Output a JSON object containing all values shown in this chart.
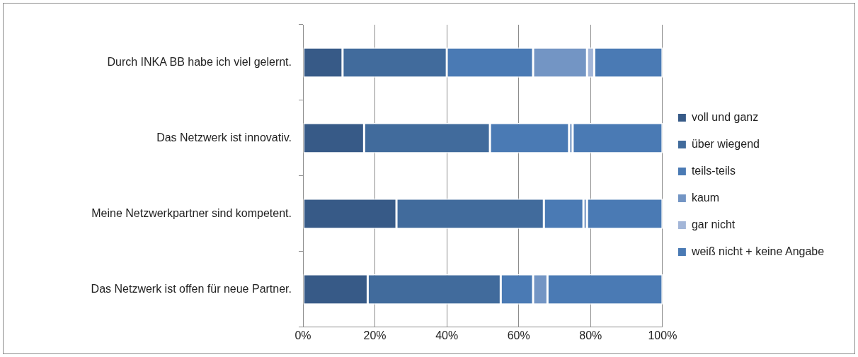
{
  "chart_data": {
    "type": "bar",
    "orientation": "horizontal",
    "stacked": true,
    "categories": [
      "Durch INKA BB habe ich viel gelernt.",
      "Das Netzwerk ist innovativ.",
      "Meine Netzwerkpartner sind kompetent.",
      "Das Netzwerk ist offen für neue Partner."
    ],
    "series": [
      {
        "name": "voll und ganz",
        "color": "#375a87",
        "values": [
          11,
          17,
          26,
          18
        ]
      },
      {
        "name": "über wiegend",
        "color": "#416b9c",
        "values": [
          29,
          35,
          41,
          37
        ]
      },
      {
        "name": "teils-teils",
        "color": "#4a7ab4",
        "values": [
          24,
          22,
          11,
          9
        ]
      },
      {
        "name": "kaum",
        "color": "#7395c4",
        "values": [
          15,
          1,
          1,
          4
        ]
      },
      {
        "name": "gar nicht",
        "color": "#a3b6d8",
        "values": [
          2,
          0,
          0,
          0
        ]
      },
      {
        "name": "weiß nicht + keine Angabe",
        "color": "#4a7ab4",
        "values": [
          19,
          25,
          21,
          32
        ]
      }
    ],
    "xlim": [
      0,
      100
    ],
    "xticks": [
      {
        "value": 0,
        "label": "0%"
      },
      {
        "value": 20,
        "label": "20%"
      },
      {
        "value": 40,
        "label": "40%"
      },
      {
        "value": 60,
        "label": "60%"
      },
      {
        "value": 80,
        "label": "80%"
      },
      {
        "value": 100,
        "label": "100%"
      }
    ],
    "grid": "x",
    "legend": "right"
  }
}
